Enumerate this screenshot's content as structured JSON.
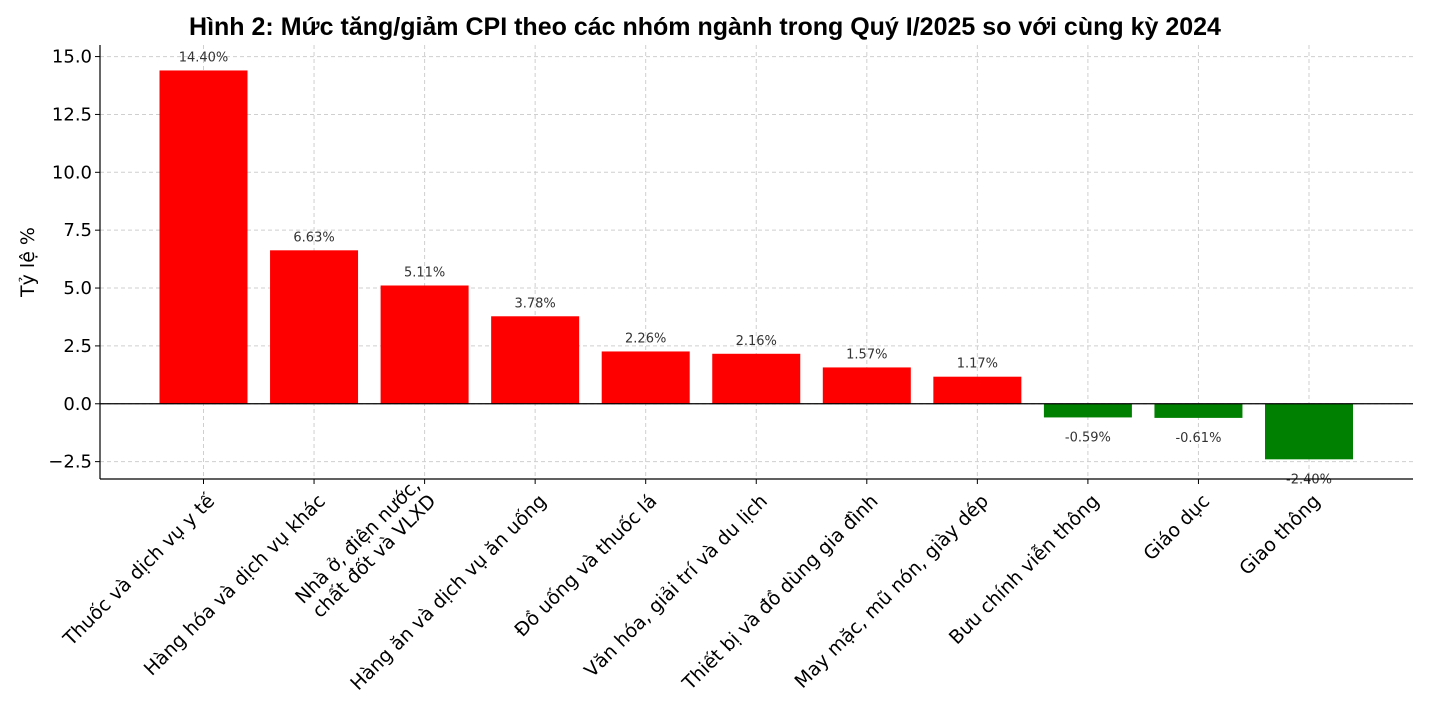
{
  "chart_data": {
    "type": "bar",
    "title": "Hình 2: Mức tăng/giảm CPI theo các nhóm ngành trong Quý I/2025 so với cùng kỳ 2024",
    "xlabel": "",
    "ylabel": "Tỷ lệ %",
    "ylim": [
      -3.25,
      15.5
    ],
    "yticks": [
      15.0,
      12.5,
      10.0,
      7.5,
      5.0,
      2.5,
      0.0,
      -2.5
    ],
    "ytick_labels": [
      "15.0",
      "12.5",
      "10.0",
      "7.5",
      "5.0",
      "2.5",
      "0.0",
      "−2.5"
    ],
    "grid": true,
    "categories": [
      [
        "Thuốc và dịch vụ y tế"
      ],
      [
        "Hàng hóa và dịch vụ khác"
      ],
      [
        "Nhà ở, điện nước,",
        "chất đốt và VLXD"
      ],
      [
        "Hàng ăn và dịch vụ ăn uống"
      ],
      [
        "Đồ uống và thuốc lá"
      ],
      [
        "Văn hóa, giải trí và du lịch"
      ],
      [
        "Thiết bị và đồ dùng gia đình"
      ],
      [
        "May mặc, mũ nón, giày dép"
      ],
      [
        "Bưu chính viễn thông"
      ],
      [
        "Giáo dục"
      ],
      [
        "Giao thông"
      ]
    ],
    "values": [
      14.4,
      6.63,
      5.11,
      3.78,
      2.26,
      2.16,
      1.57,
      1.17,
      -0.59,
      -0.61,
      -2.4
    ],
    "data_labels": [
      "14.40%",
      "6.63%",
      "5.11%",
      "3.78%",
      "2.26%",
      "2.16%",
      "1.57%",
      "1.17%",
      "-0.59%",
      "-0.61%",
      "-2.40%"
    ],
    "colors": {
      "positive": "#ff0000",
      "negative": "#008000",
      "grid": "#cfcfcf",
      "axis": "#000000"
    }
  }
}
